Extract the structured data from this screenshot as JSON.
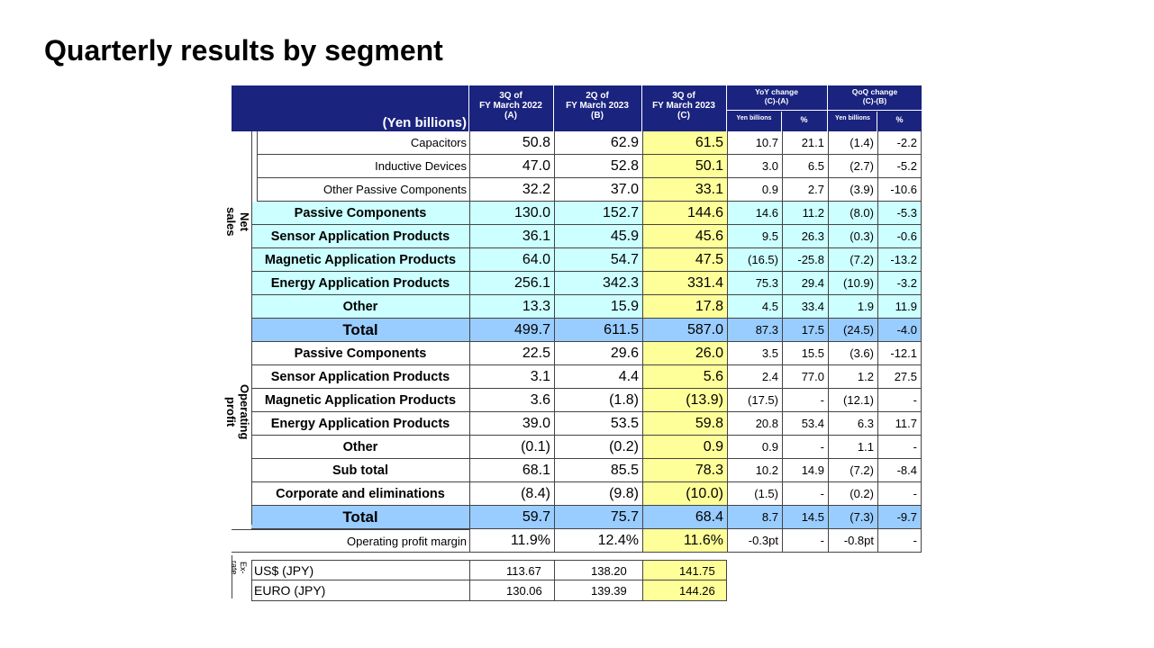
{
  "title": "Quarterly results by segment",
  "header": {
    "unit_label": "(Yen billions)",
    "colA": [
      "3Q of",
      "FY March 2022",
      "(A)"
    ],
    "colB": [
      "2Q of",
      "FY March 2023",
      "(B)"
    ],
    "colC": [
      "3Q of",
      "FY March 2023",
      "(C)"
    ],
    "yoy": [
      "YoY change",
      "(C)-(A)"
    ],
    "qoq": [
      "QoQ change",
      "(C)-(B)"
    ],
    "sub_yen": "Yen billions",
    "sub_pct": "%"
  },
  "side_labels": {
    "net_sales": "Net sales",
    "operating_profit": "Operating profit",
    "ex_rate": "Ex-rate"
  },
  "net_sales_rows": [
    {
      "label": "Capacitors",
      "a": "50.8",
      "b": "62.9",
      "c": "61.5",
      "yoy": "10.7",
      "yoyp": "21.1",
      "qoq": "(1.4)",
      "qoqp": "-2.2"
    },
    {
      "label": "Inductive Devices",
      "a": "47.0",
      "b": "52.8",
      "c": "50.1",
      "yoy": "3.0",
      "yoyp": "6.5",
      "qoq": "(2.7)",
      "qoqp": "-5.2"
    },
    {
      "label": "Other Passive Components",
      "a": "32.2",
      "b": "37.0",
      "c": "33.1",
      "yoy": "0.9",
      "yoyp": "2.7",
      "qoq": "(3.9)",
      "qoqp": "-10.6"
    },
    {
      "label": "Passive Components",
      "a": "130.0",
      "b": "152.7",
      "c": "144.6",
      "yoy": "14.6",
      "yoyp": "11.2",
      "qoq": "(8.0)",
      "qoqp": "-5.3"
    },
    {
      "label": "Sensor Application Products",
      "a": "36.1",
      "b": "45.9",
      "c": "45.6",
      "yoy": "9.5",
      "yoyp": "26.3",
      "qoq": "(0.3)",
      "qoqp": "-0.6"
    },
    {
      "label": "Magnetic Application Products",
      "a": "64.0",
      "b": "54.7",
      "c": "47.5",
      "yoy": "(16.5)",
      "yoyp": "-25.8",
      "qoq": "(7.2)",
      "qoqp": "-13.2"
    },
    {
      "label": "Energy Application Products",
      "a": "256.1",
      "b": "342.3",
      "c": "331.4",
      "yoy": "75.3",
      "yoyp": "29.4",
      "qoq": "(10.9)",
      "qoqp": "-3.2"
    },
    {
      "label": "Other",
      "a": "13.3",
      "b": "15.9",
      "c": "17.8",
      "yoy": "4.5",
      "yoyp": "33.4",
      "qoq": "1.9",
      "qoqp": "11.9"
    },
    {
      "label": "Total",
      "a": "499.7",
      "b": "611.5",
      "c": "587.0",
      "yoy": "87.3",
      "yoyp": "17.5",
      "qoq": "(24.5)",
      "qoqp": "-4.0"
    }
  ],
  "op_rows": [
    {
      "label": "Passive Components",
      "a": "22.5",
      "b": "29.6",
      "c": "26.0",
      "yoy": "3.5",
      "yoyp": "15.5",
      "qoq": "(3.6)",
      "qoqp": "-12.1"
    },
    {
      "label": "Sensor Application Products",
      "a": "3.1",
      "b": "4.4",
      "c": "5.6",
      "yoy": "2.4",
      "yoyp": "77.0",
      "qoq": "1.2",
      "qoqp": "27.5"
    },
    {
      "label": "Magnetic Application Products",
      "a": "3.6",
      "b": "(1.8)",
      "c": "(13.9)",
      "yoy": "(17.5)",
      "yoyp": "-",
      "qoq": "(12.1)",
      "qoqp": "-"
    },
    {
      "label": "Energy Application Products",
      "a": "39.0",
      "b": "53.5",
      "c": "59.8",
      "yoy": "20.8",
      "yoyp": "53.4",
      "qoq": "6.3",
      "qoqp": "11.7"
    },
    {
      "label": "Other",
      "a": "(0.1)",
      "b": "(0.2)",
      "c": "0.9",
      "yoy": "0.9",
      "yoyp": "-",
      "qoq": "1.1",
      "qoqp": "-"
    },
    {
      "label": "Sub total",
      "a": "68.1",
      "b": "85.5",
      "c": "78.3",
      "yoy": "10.2",
      "yoyp": "14.9",
      "qoq": "(7.2)",
      "qoqp": "-8.4"
    },
    {
      "label": "Corporate and eliminations",
      "a": "(8.4)",
      "b": "(9.8)",
      "c": "(10.0)",
      "yoy": "(1.5)",
      "yoyp": "-",
      "qoq": "(0.2)",
      "qoqp": "-"
    },
    {
      "label": "Total",
      "a": "59.7",
      "b": "75.7",
      "c": "68.4",
      "yoy": "8.7",
      "yoyp": "14.5",
      "qoq": "(7.3)",
      "qoqp": "-9.7"
    }
  ],
  "margin_row": {
    "label": "Operating profit margin",
    "a": "11.9%",
    "b": "12.4%",
    "c": "11.6%",
    "yoy": "-0.3pt",
    "yoyp": "-",
    "qoq": "-0.8pt",
    "qoqp": "-"
  },
  "fx_rows": [
    {
      "label": "US$ (JPY)",
      "a": "113.67",
      "b": "138.20",
      "c": "141.75"
    },
    {
      "label": "EURO (JPY)",
      "a": "130.06",
      "b": "139.39",
      "c": "144.26"
    }
  ],
  "colors": {
    "header": "#1a237e",
    "cyan": "#ccffff",
    "blue": "#99ccff",
    "yellow": "#ffff99"
  }
}
